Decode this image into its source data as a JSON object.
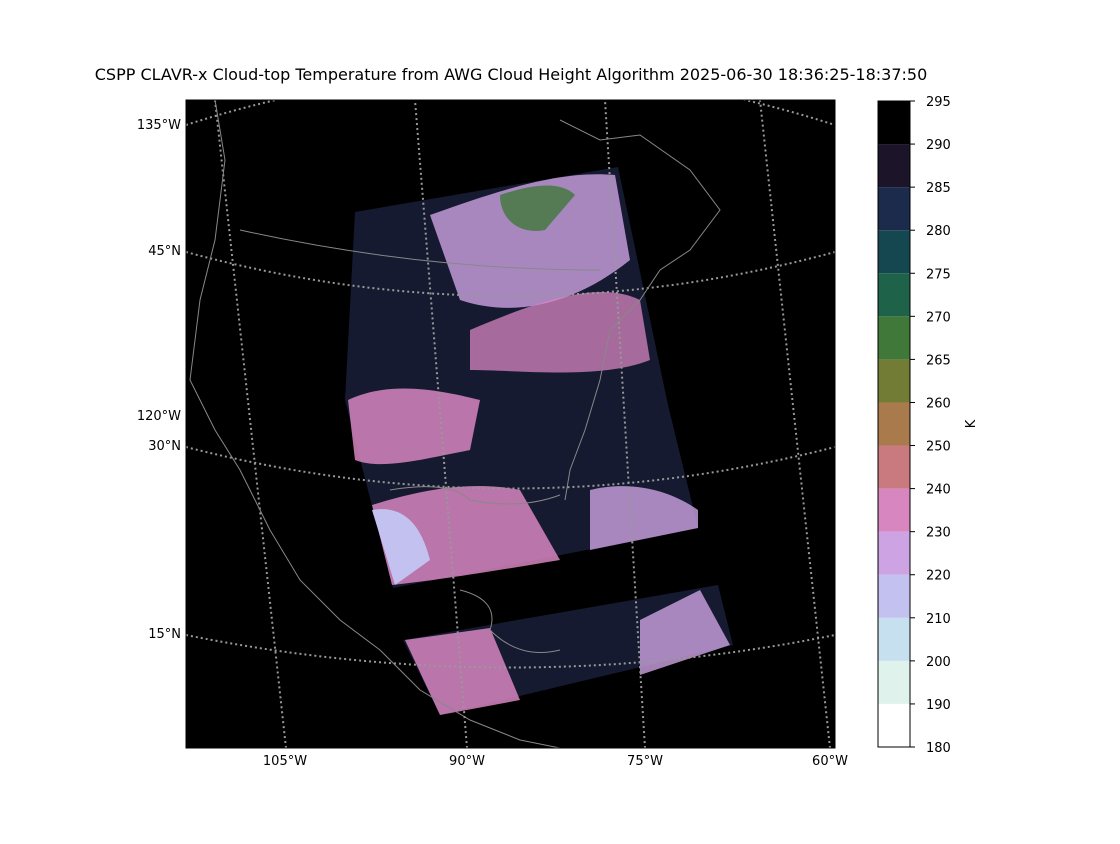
{
  "title": "CSPP CLAVR-x Cloud-top Temperature from AWG Cloud Height Algorithm 2025-06-30 18:36:25-18:37:50",
  "map": {
    "left_labels": [
      "135°W",
      "45°N",
      "120°W",
      "30°N",
      "15°N"
    ],
    "bottom_labels": [
      "105°W",
      "90°W",
      "75°W",
      "60°W"
    ]
  },
  "colorbar": {
    "label": "K",
    "ticks": [
      180,
      190,
      200,
      210,
      220,
      230,
      240,
      250,
      260,
      265,
      270,
      275,
      280,
      285,
      290,
      295
    ],
    "colors": [
      "#ffffff",
      "#dff3ec",
      "#c6e0f0",
      "#c3c1f0",
      "#cda3e3",
      "#d786c0",
      "#c97a7f",
      "#a87a4c",
      "#727c34",
      "#3f7838",
      "#1e6249",
      "#154750",
      "#1c2a4c",
      "#1c1428",
      "#000000"
    ]
  }
}
